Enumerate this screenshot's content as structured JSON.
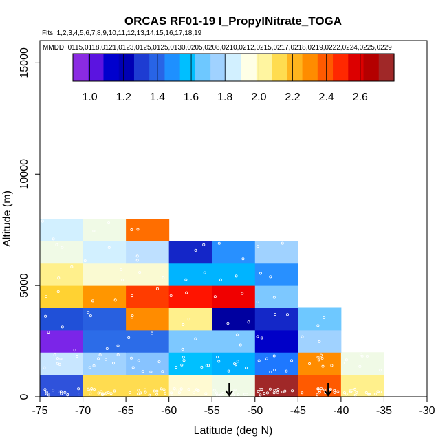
{
  "chart_data": {
    "type": "heatmap",
    "title": "ORCAS RF01-19 I_PropylNitrate_TOGA",
    "flights_label": "Flts: 1,2,3,4,5,6,7,8,9,10,11,12,13,14,15,16,17,18,19",
    "mmdd_label": "MMDD: 0115,0118,0121,0123,0125,0125,0130,0205,0208,0210,0212,0215,0217,0218,0219,0222,0224,0225,0229",
    "xlabel": "Latitude (deg N)",
    "ylabel": "Altitude (m)",
    "xlim": [
      -75,
      -30
    ],
    "ylim": [
      0,
      16000
    ],
    "x_ticks": [
      -75,
      -70,
      -65,
      -60,
      -55,
      -50,
      -45,
      -40,
      -35,
      -30
    ],
    "x_tick_labels": [
      "-75",
      "-70",
      "-65",
      "-60",
      "-55",
      "-50",
      "-45",
      "-40",
      "-35",
      "-30"
    ],
    "y_ticks": [
      0,
      5000,
      10000,
      15000
    ],
    "y_tick_labels": [
      "0",
      "5000",
      "10000",
      "15000"
    ],
    "colorbar": {
      "range": [
        0.9,
        2.8
      ],
      "ticks": [
        1.0,
        1.2,
        1.4,
        1.6,
        1.8,
        2.0,
        2.2,
        2.4,
        2.6
      ],
      "tick_labels": [
        "1.0",
        "1.2",
        "1.4",
        "1.6",
        "1.8",
        "2.0",
        "2.2",
        "2.4",
        "2.6"
      ],
      "colors": [
        "#8a2be2",
        "#5b14e0",
        "#0000cd",
        "#0000b4",
        "#1e3cd2",
        "#2864e6",
        "#1e90ff",
        "#00bfff",
        "#6ec8ff",
        "#a0d2ff",
        "#d2f0ff",
        "#ffffe6",
        "#fff5a0",
        "#ffdc50",
        "#ffb41e",
        "#ff8c00",
        "#ff5a00",
        "#ff2800",
        "#dc0000",
        "#b40000",
        "#a02828"
      ]
    },
    "cell_size": {
      "lat_deg": 5,
      "alt_m": 1000
    },
    "cells": [
      {
        "lat": -75,
        "alt": 0,
        "value": 1.15,
        "color": "#2f52db"
      },
      {
        "lat": -70,
        "alt": 0,
        "value": 2.25,
        "color": "#ffdc50"
      },
      {
        "lat": -65,
        "alt": 0,
        "value": 2.25,
        "color": "#ffdc50"
      },
      {
        "lat": -60,
        "alt": 0,
        "value": 2.05,
        "color": "#fffad2"
      },
      {
        "lat": -55,
        "alt": 0,
        "value": 1.95,
        "color": "#f0fae6"
      },
      {
        "lat": -50,
        "alt": 0,
        "value": 2.75,
        "color": "#a02828"
      },
      {
        "lat": -45,
        "alt": 0,
        "value": 2.5,
        "color": "#ff5a00"
      },
      {
        "lat": -40,
        "alt": 0,
        "value": 2.15,
        "color": "#fff08c"
      },
      {
        "lat": -75,
        "alt": 1000,
        "value": 1.75,
        "color": "#c8e6ff"
      },
      {
        "lat": -70,
        "alt": 1000,
        "value": 1.65,
        "color": "#a0d2ff"
      },
      {
        "lat": -65,
        "alt": 1000,
        "value": 1.6,
        "color": "#87c3ff"
      },
      {
        "lat": -60,
        "alt": 1000,
        "value": 1.55,
        "color": "#00c0ff"
      },
      {
        "lat": -55,
        "alt": 1000,
        "value": 1.5,
        "color": "#00b0ff"
      },
      {
        "lat": -50,
        "alt": 1000,
        "value": 1.35,
        "color": "#1e78ff"
      },
      {
        "lat": -45,
        "alt": 1000,
        "value": 2.45,
        "color": "#ff8c00"
      },
      {
        "lat": -40,
        "alt": 1000,
        "value": 1.95,
        "color": "#f0fae6"
      },
      {
        "lat": -75,
        "alt": 2000,
        "value": 0.95,
        "color": "#7b25e8"
      },
      {
        "lat": -70,
        "alt": 2000,
        "value": 1.3,
        "color": "#2c6ce8"
      },
      {
        "lat": -65,
        "alt": 2000,
        "value": 1.3,
        "color": "#2c6ce8"
      },
      {
        "lat": -60,
        "alt": 2000,
        "value": 1.6,
        "color": "#7dc8ff"
      },
      {
        "lat": -55,
        "alt": 2000,
        "value": 1.6,
        "color": "#7dc8ff"
      },
      {
        "lat": -50,
        "alt": 2000,
        "value": 1.05,
        "color": "#0000c8"
      },
      {
        "lat": -45,
        "alt": 2000,
        "value": 1.7,
        "color": "#a0d2ff"
      },
      {
        "lat": -75,
        "alt": 3000,
        "value": 1.2,
        "color": "#2050d8"
      },
      {
        "lat": -70,
        "alt": 3000,
        "value": 1.25,
        "color": "#2860e0"
      },
      {
        "lat": -65,
        "alt": 3000,
        "value": 2.45,
        "color": "#ff8c00"
      },
      {
        "lat": -60,
        "alt": 3000,
        "value": 2.15,
        "color": "#fff08c"
      },
      {
        "lat": -55,
        "alt": 3000,
        "value": 1.0,
        "color": "#0000a0"
      },
      {
        "lat": -50,
        "alt": 3000,
        "value": 1.1,
        "color": "#1428c8"
      },
      {
        "lat": -45,
        "alt": 3000,
        "value": 1.6,
        "color": "#6ec8ff"
      },
      {
        "lat": -75,
        "alt": 4000,
        "value": 2.3,
        "color": "#ffd232"
      },
      {
        "lat": -70,
        "alt": 4000,
        "value": 2.45,
        "color": "#ff9600"
      },
      {
        "lat": -65,
        "alt": 4000,
        "value": 2.6,
        "color": "#ff3c00"
      },
      {
        "lat": -60,
        "alt": 4000,
        "value": 2.65,
        "color": "#ff1400"
      },
      {
        "lat": -55,
        "alt": 4000,
        "value": 2.7,
        "color": "#f00000"
      },
      {
        "lat": -50,
        "alt": 4000,
        "value": 1.6,
        "color": "#7dc8ff"
      },
      {
        "lat": -75,
        "alt": 5000,
        "value": 2.15,
        "color": "#fff08c"
      },
      {
        "lat": -70,
        "alt": 5000,
        "value": 2.05,
        "color": "#fafad2"
      },
      {
        "lat": -65,
        "alt": 5000,
        "value": 2.05,
        "color": "#fafad2"
      },
      {
        "lat": -60,
        "alt": 5000,
        "value": 1.5,
        "color": "#00b4ff"
      },
      {
        "lat": -55,
        "alt": 5000,
        "value": 1.5,
        "color": "#00b4ff"
      },
      {
        "lat": -50,
        "alt": 5000,
        "value": 1.4,
        "color": "#2890ff"
      },
      {
        "lat": -75,
        "alt": 6000,
        "value": 1.95,
        "color": "#f0fae6"
      },
      {
        "lat": -70,
        "alt": 6000,
        "value": 1.8,
        "color": "#d2f0ff"
      },
      {
        "lat": -65,
        "alt": 6000,
        "value": 1.75,
        "color": "#bee0ff"
      },
      {
        "lat": -60,
        "alt": 6000,
        "value": 1.05,
        "color": "#1426c8"
      },
      {
        "lat": -55,
        "alt": 6000,
        "value": 1.4,
        "color": "#2890ff"
      },
      {
        "lat": -50,
        "alt": 6000,
        "value": 1.65,
        "color": "#a0d2ff"
      },
      {
        "lat": -75,
        "alt": 7000,
        "value": 1.8,
        "color": "#d2f0ff"
      },
      {
        "lat": -70,
        "alt": 7000,
        "value": 1.95,
        "color": "#f0fae6"
      },
      {
        "lat": -65,
        "alt": 7000,
        "value": 2.5,
        "color": "#ff6e00"
      }
    ],
    "arrows": [
      -53,
      -41.5
    ]
  }
}
